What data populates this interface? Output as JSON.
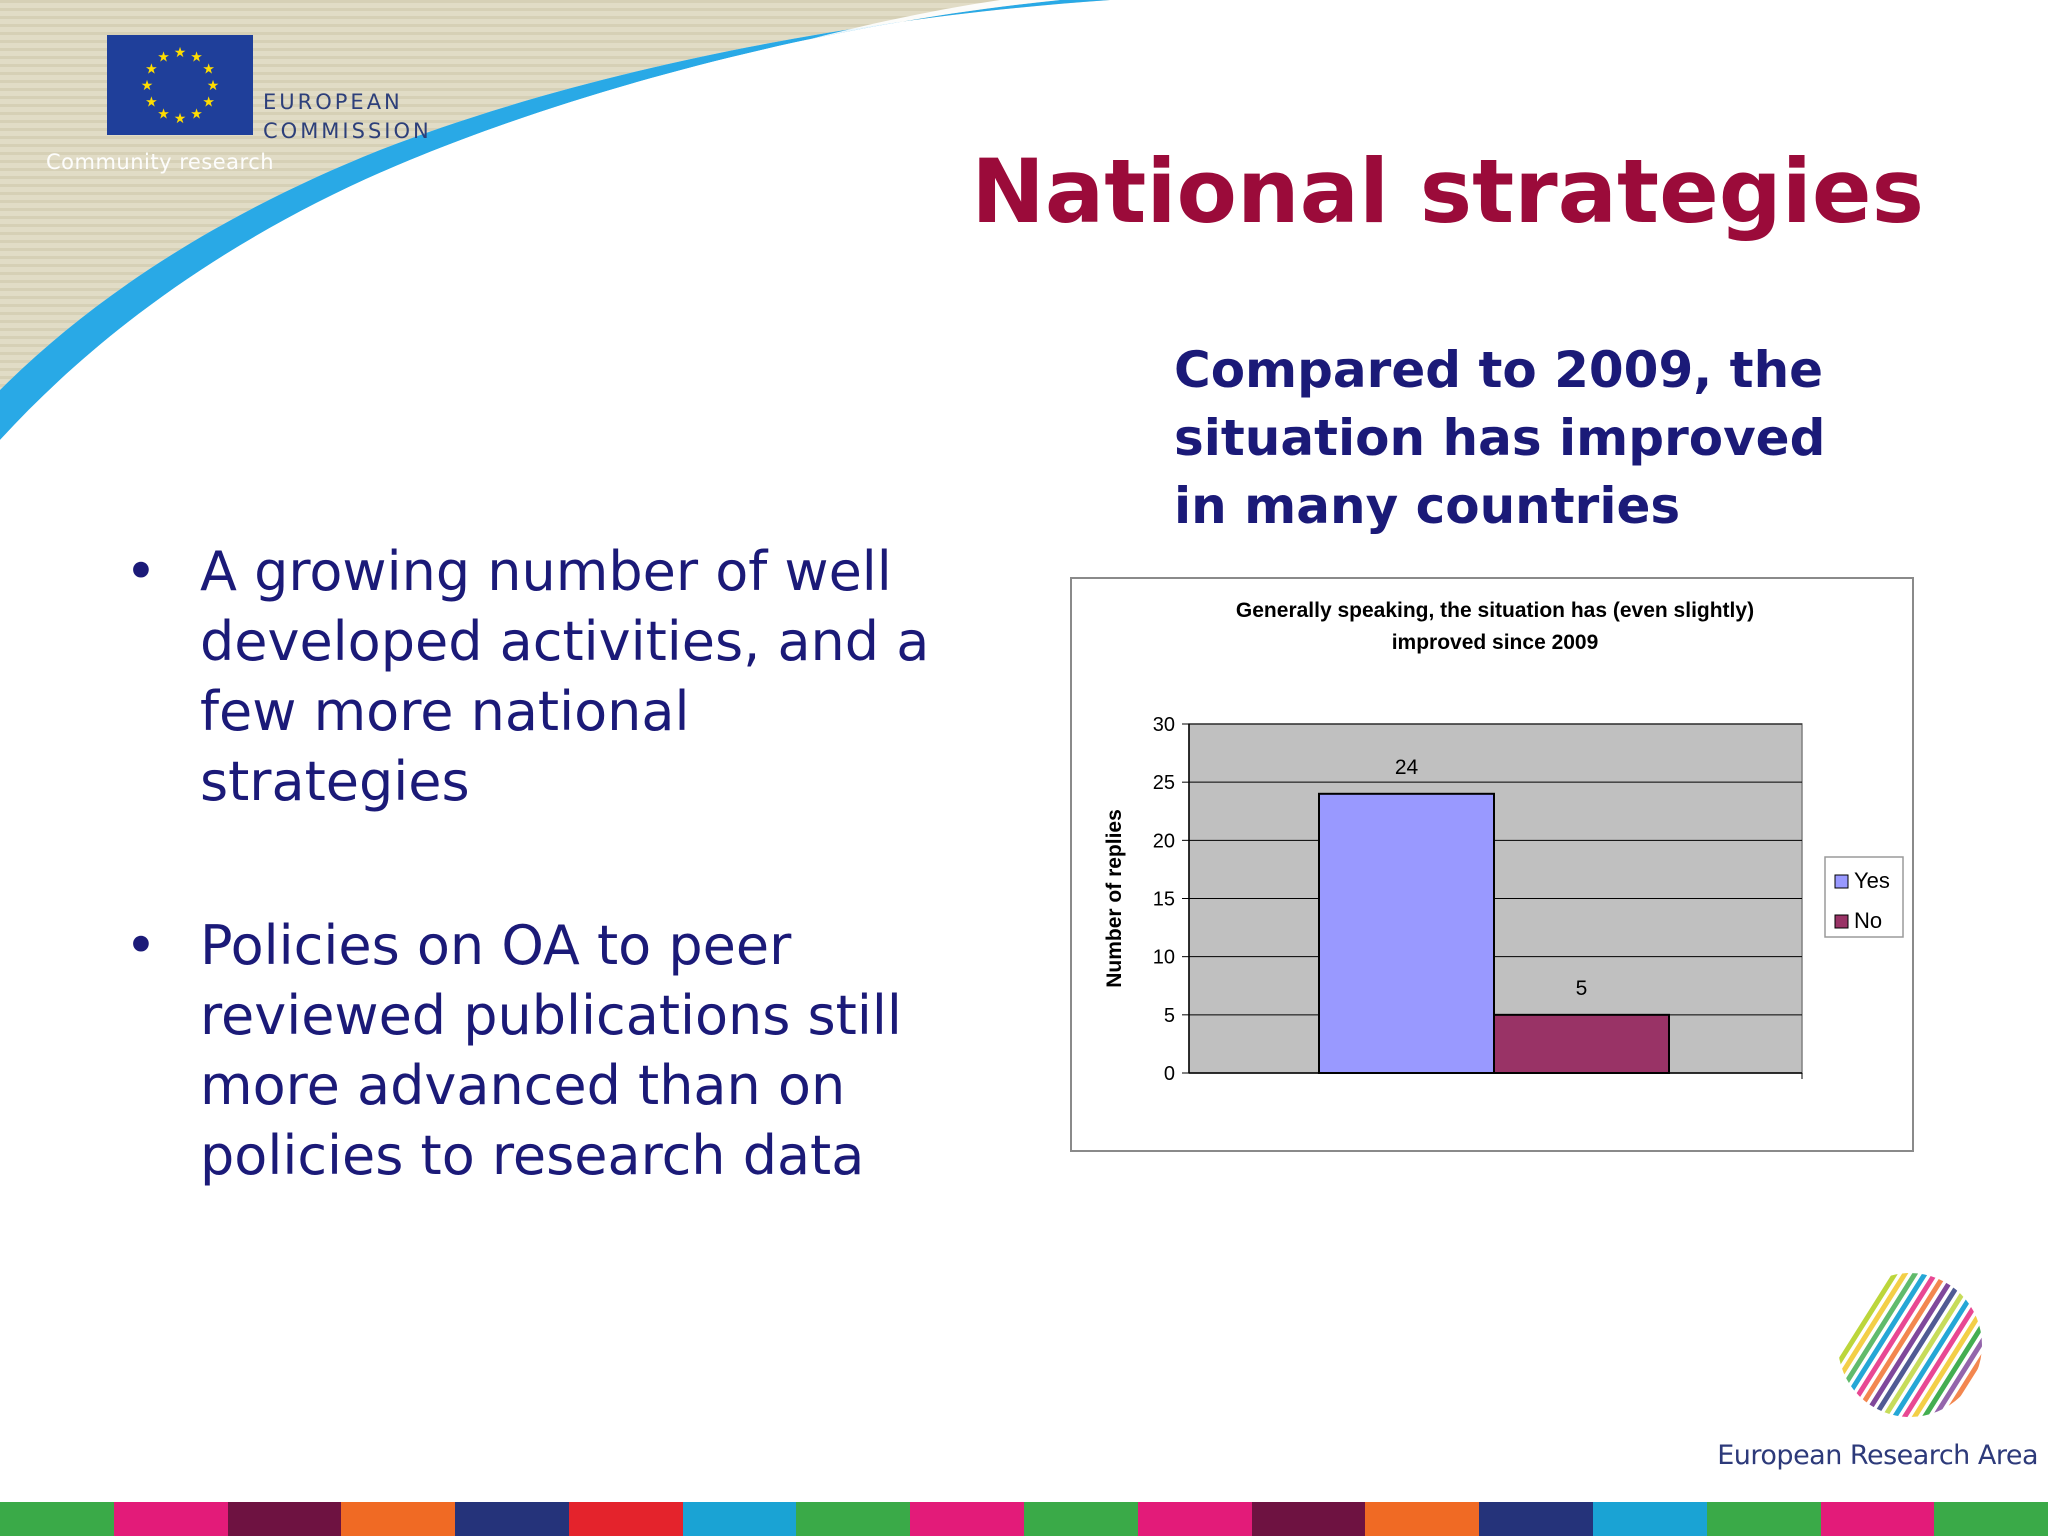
{
  "logo": {
    "line1": "EUROPEAN",
    "line2": "COMMISSION",
    "tagline": "Community research",
    "icon": "eu-stars-icon"
  },
  "slide": {
    "title": "National strategies"
  },
  "caption": [
    "Compared to 2009, the",
    "situation has improved",
    "in many countries"
  ],
  "bullets": [
    {
      "lines": [
        "A growing number of well",
        "developed activities, and a",
        "few more national",
        "strategies"
      ]
    },
    {
      "lines": [
        "Policies on OA to peer",
        "reviewed publications still",
        "more advanced than on",
        "policies to research data"
      ]
    }
  ],
  "chart_data": {
    "type": "bar",
    "title_lines": [
      "Generally speaking, the situation has (even slightly)",
      "improved since 2009"
    ],
    "xlabel": "",
    "ylabel": "Number of replies",
    "ylim": [
      0,
      30
    ],
    "yticks": [
      0,
      5,
      10,
      15,
      20,
      25,
      30
    ],
    "grid": true,
    "legend_position": "right",
    "series": [
      {
        "name": "Yes",
        "values": [
          24
        ],
        "color": "#9999ff"
      },
      {
        "name": "No",
        "values": [
          5
        ],
        "color": "#993366"
      }
    ],
    "data_labels": [
      "24",
      "5"
    ],
    "plot_background": "#c0c0c0"
  },
  "footer": {
    "era_label": "European Research Area",
    "bar_colors": [
      "#3aaa48",
      "#e31b79",
      "#6e1241",
      "#f06a24",
      "#25337a",
      "#e4232c",
      "#1aa3d4",
      "#3aaa48",
      "#e31b79",
      "#3aaa48",
      "#e31b79",
      "#6e1241",
      "#f06a24",
      "#25337a",
      "#1aa3d4",
      "#3aaa48",
      "#e31b79",
      "#3aaa48"
    ]
  },
  "colors": {
    "title": "#9b0b3a",
    "text": "#1b1a78",
    "swoosh_blue": "#29a9e6"
  }
}
